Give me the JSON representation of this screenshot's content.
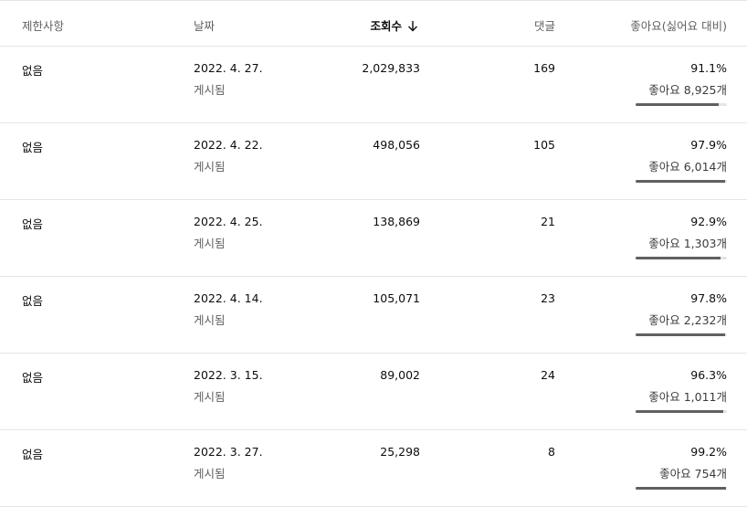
{
  "header": {
    "restriction": "제한사항",
    "date": "날짜",
    "views": "조회수",
    "comments": "댓글",
    "likes": "좋아요(싫어요 대비)"
  },
  "rows": [
    {
      "restriction": "없음",
      "date": "2022. 4. 27.",
      "status": "게시됨",
      "views": "2,029,833",
      "comments": "169",
      "like_pct": "91.1%",
      "like_count": "좋아요 8,925개",
      "ratio": 0.911
    },
    {
      "restriction": "없음",
      "date": "2022. 4. 22.",
      "status": "게시됨",
      "views": "498,056",
      "comments": "105",
      "like_pct": "97.9%",
      "like_count": "좋아요 6,014개",
      "ratio": 0.979
    },
    {
      "restriction": "없음",
      "date": "2022. 4. 25.",
      "status": "게시됨",
      "views": "138,869",
      "comments": "21",
      "like_pct": "92.9%",
      "like_count": "좋아요 1,303개",
      "ratio": 0.929
    },
    {
      "restriction": "없음",
      "date": "2022. 4. 14.",
      "status": "게시됨",
      "views": "105,071",
      "comments": "23",
      "like_pct": "97.8%",
      "like_count": "좋아요 2,232개",
      "ratio": 0.978
    },
    {
      "restriction": "없음",
      "date": "2022. 3. 15.",
      "status": "게시됨",
      "views": "89,002",
      "comments": "24",
      "like_pct": "96.3%",
      "like_count": "좋아요 1,011개",
      "ratio": 0.963
    },
    {
      "restriction": "없음",
      "date": "2022. 3. 27.",
      "status": "게시됨",
      "views": "25,298",
      "comments": "8",
      "like_pct": "99.2%",
      "like_count": "좋아요 754개",
      "ratio": 0.992
    }
  ]
}
